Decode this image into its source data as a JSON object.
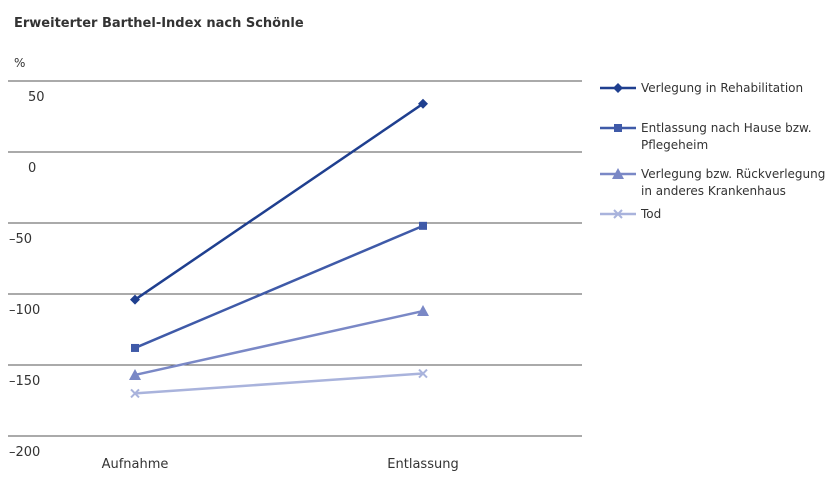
{
  "chart_data": {
    "type": "line",
    "title": "Erweiterter Barthel-Index nach Schönle",
    "ylabel": "%",
    "categories": [
      "Aufnahme",
      "Entlassung"
    ],
    "yticks": [
      50,
      0,
      -50,
      -100,
      -150,
      -200
    ],
    "ylim": [
      -200,
      50
    ],
    "grid": true,
    "legend_position": "right",
    "series": [
      {
        "name": "Verlegung in Rehabilitation",
        "values": [
          -104,
          34
        ],
        "color": "#1f3f8f",
        "marker": "diamond"
      },
      {
        "name": [
          "Entlassung nach Hause bzw.",
          "Pflegeheim"
        ],
        "values": [
          -138,
          -52
        ],
        "color": "#3f5aa8",
        "marker": "square"
      },
      {
        "name": [
          "Verlegung bzw. Rückverlegung",
          "in anderes Krankenhaus"
        ],
        "values": [
          -157,
          -112
        ],
        "color": "#7a88c6",
        "marker": "triangle"
      },
      {
        "name": "Tod",
        "values": [
          -170,
          -156
        ],
        "color": "#a9b3dc",
        "marker": "x"
      }
    ]
  }
}
